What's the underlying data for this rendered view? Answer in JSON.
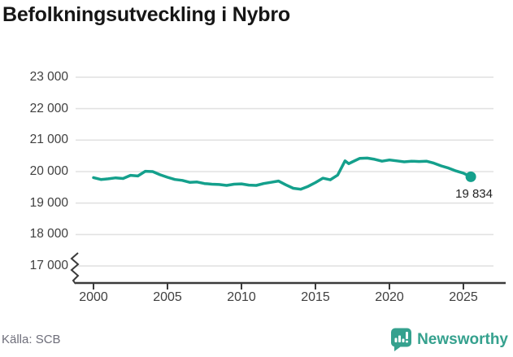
{
  "title": "Befolkningsutveckling i Nybro",
  "source": "Källa: SCB",
  "branding": {
    "name": "Newsworthy",
    "color": "#35a18e",
    "icon": "speech-bubble-bar-chart"
  },
  "colors": {
    "line": "#14a08c",
    "grid": "#e2e2e2",
    "axis": "#3b3b3b",
    "tick_label": "#3f3f3f",
    "annotation": "#222222"
  },
  "chart_data": {
    "type": "line",
    "title": "Befolkningsutveckling i Nybro",
    "xlabel": "",
    "ylabel": "",
    "legend": "none",
    "grid": "horizontal",
    "axis_break_at_bottom": true,
    "xlim": [
      1998.8,
      2027.7
    ],
    "ylim": [
      17000,
      23400
    ],
    "x_ticks": [
      "2000",
      "2005",
      "2010",
      "2015",
      "2020",
      "2025"
    ],
    "x_tick_values": [
      2000,
      2005,
      2010,
      2015,
      2020,
      2025
    ],
    "y_ticks": [
      "23 000",
      "22 000",
      "21 000",
      "20 000",
      "19 000",
      "18 000",
      "17 000"
    ],
    "y_tick_values": [
      23000,
      22000,
      21000,
      20000,
      19000,
      18000,
      17000
    ],
    "x": [
      2000,
      2000.5,
      2001,
      2001.5,
      2002,
      2002.5,
      2003,
      2003.5,
      2004,
      2004.5,
      2005,
      2005.5,
      2006,
      2006.5,
      2007,
      2007.5,
      2008,
      2008.5,
      2009,
      2009.5,
      2010,
      2010.5,
      2011,
      2011.5,
      2012,
      2012.5,
      2013,
      2013.5,
      2014,
      2014.5,
      2015,
      2015.5,
      2016,
      2016.5,
      2017,
      2017.25,
      2017.5,
      2018,
      2018.5,
      2019,
      2019.5,
      2020,
      2020.5,
      2021,
      2021.5,
      2022,
      2022.5,
      2023,
      2023.5,
      2024,
      2024.5,
      2025,
      2025.5
    ],
    "series": [
      {
        "name": "Befolkning",
        "values": [
          19810,
          19750,
          19770,
          19800,
          19780,
          19880,
          19860,
          20010,
          20000,
          19900,
          19820,
          19750,
          19720,
          19660,
          19670,
          19620,
          19600,
          19590,
          19560,
          19600,
          19610,
          19570,
          19560,
          19620,
          19660,
          19700,
          19580,
          19470,
          19440,
          19530,
          19650,
          19790,
          19740,
          19890,
          20340,
          20250,
          20310,
          20420,
          20430,
          20390,
          20330,
          20370,
          20340,
          20310,
          20330,
          20320,
          20330,
          20270,
          20180,
          20110,
          20020,
          19950,
          19834
        ]
      }
    ],
    "end_value": 19834,
    "end_label": "19 834"
  }
}
